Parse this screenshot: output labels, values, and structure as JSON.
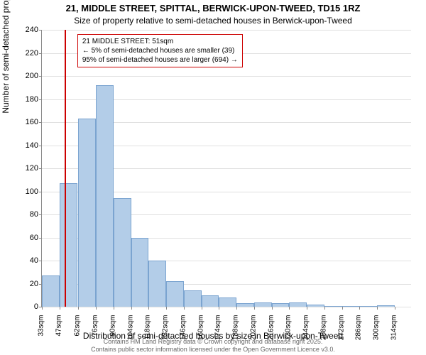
{
  "chart": {
    "type": "histogram",
    "title": "21, MIDDLE STREET, SPITTAL, BERWICK-UPON-TWEED, TD15 1RZ",
    "subtitle": "Size of property relative to semi-detached houses in Berwick-upon-Tweed",
    "ylabel": "Number of semi-detached properties",
    "xlabel": "Distribution of semi-detached houses by size in Berwick-upon-Tweed",
    "ylim": [
      0,
      240
    ],
    "ytick_step": 20,
    "yticks": [
      0,
      20,
      40,
      60,
      80,
      100,
      120,
      140,
      160,
      180,
      200,
      220,
      240
    ],
    "xticks": [
      "33sqm",
      "47sqm",
      "62sqm",
      "76sqm",
      "90sqm",
      "104sqm",
      "118sqm",
      "132sqm",
      "146sqm",
      "160sqm",
      "174sqm",
      "188sqm",
      "202sqm",
      "216sqm",
      "230sqm",
      "244sqm",
      "258sqm",
      "272sqm",
      "286sqm",
      "300sqm",
      "314sqm"
    ],
    "categories_start": [
      33,
      47,
      62,
      76,
      90,
      104,
      118,
      132,
      146,
      160,
      174,
      188,
      202,
      216,
      230,
      244,
      258,
      272,
      286,
      300,
      314
    ],
    "values": [
      27,
      107,
      163,
      192,
      94,
      60,
      40,
      22,
      14,
      10,
      8,
      3,
      4,
      3,
      4,
      2,
      0,
      0,
      0,
      1
    ],
    "bar_color": "#b3cde8",
    "bar_border_color": "#7ba4d0",
    "background_color": "#ffffff",
    "grid_color": "#e0e0e0",
    "axis_color": "#888888",
    "text_color": "#000000",
    "title_fontsize": 13,
    "subtitle_fontsize": 12,
    "label_fontsize": 12,
    "tick_fontsize": 11,
    "xtick_fontsize": 10,
    "reference_line": {
      "value_sqm": 51,
      "color": "#cc0000",
      "width": 2
    },
    "annotation": {
      "lines": [
        "21 MIDDLE STREET: 51sqm",
        "← 5% of semi-detached houses are smaller (39)",
        "95% of semi-detached houses are larger (694) →"
      ],
      "border_color": "#cc0000",
      "background_color": "#ffffff",
      "fontsize": 10
    },
    "footer": {
      "line1": "Contains HM Land Registry data © Crown copyright and database right 2025.",
      "line2": "Contains public sector information licensed under the Open Government Licence v3.0.",
      "color": "#666666",
      "fontsize": 9
    }
  }
}
